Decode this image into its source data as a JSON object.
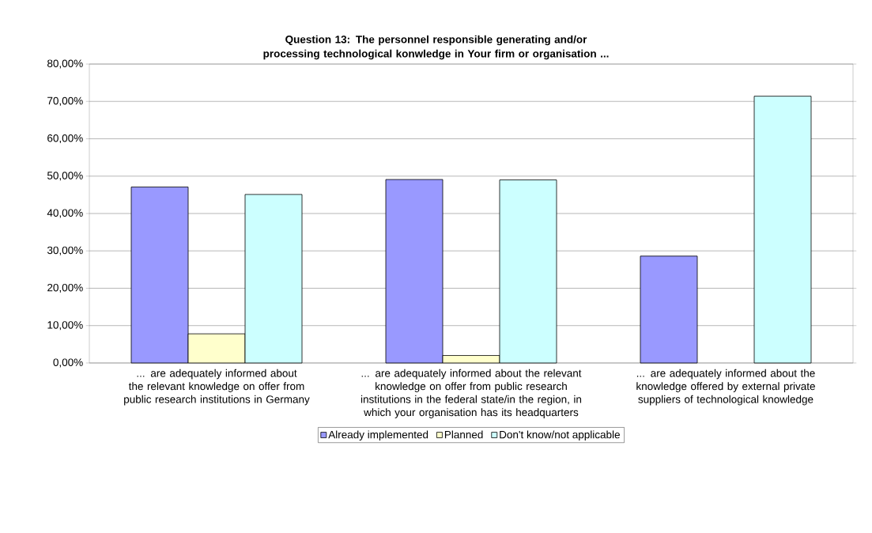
{
  "chart_data": {
    "type": "bar",
    "title": "Question 13: The personnel responsible generating and/or processing technological konwledge in Your firm or organisation ...",
    "categories": [
      "... are adequately informed about the relevant knowledge on offer from public research institutions in Germany",
      "... are adequately informed about the relevant knowledge on offer from public research institutions in the federal state/in the region, in which your organisation has its headquarters",
      "... are adequately informed about the knowledge offered by external private suppliers of technological knowledge"
    ],
    "series": [
      {
        "name": "Already implemented",
        "color": "#9999ff",
        "values": [
          47.1,
          49.1,
          28.6
        ]
      },
      {
        "name": "Planned",
        "color": "#ffffcc",
        "values": [
          7.8,
          2.0,
          null
        ]
      },
      {
        "name": "Don't know/not applicable",
        "color": "#ccffff",
        "values": [
          45.1,
          49.0,
          71.4
        ]
      }
    ],
    "ylim": [
      0,
      80
    ],
    "yticks": [
      {
        "value": 0,
        "label": "0,00%"
      },
      {
        "value": 10,
        "label": "10,00%"
      },
      {
        "value": 20,
        "label": "20,00%"
      },
      {
        "value": 30,
        "label": "30,00%"
      },
      {
        "value": 40,
        "label": "40,00%"
      },
      {
        "value": 50,
        "label": "50,00%"
      },
      {
        "value": 60,
        "label": "60,00%"
      },
      {
        "value": 70,
        "label": "70,00%"
      },
      {
        "value": 80,
        "label": "80,00%"
      }
    ],
    "grid": "y",
    "legend": "bottom"
  }
}
